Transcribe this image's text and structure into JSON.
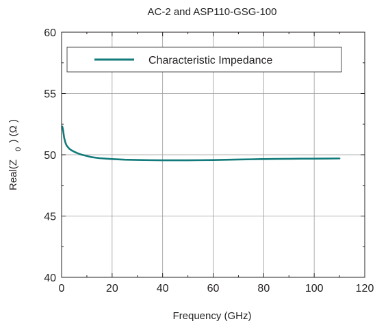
{
  "chart_data": {
    "type": "line",
    "title": "AC-2 and ASP110-GSG-100",
    "xlabel": "Frequency (GHz)",
    "ylabel": {
      "prefix": "Real(Z",
      "subscript": "0",
      "suffix": ") (Ω )"
    },
    "xlim": [
      0,
      120
    ],
    "ylim": [
      40,
      60
    ],
    "xticks": [
      0,
      20,
      40,
      60,
      80,
      100,
      120
    ],
    "yticks": [
      40,
      45,
      50,
      55,
      60
    ],
    "grid": true,
    "legend_position": "top",
    "series": [
      {
        "name": "Characteristic Impedance",
        "color": "#127a7a",
        "x": [
          0.3,
          0.6,
          1,
          1.5,
          2,
          3,
          4,
          5,
          6,
          8,
          10,
          12,
          15,
          20,
          25,
          30,
          35,
          40,
          45,
          50,
          55,
          60,
          65,
          70,
          75,
          80,
          85,
          90,
          95,
          100,
          105,
          110
        ],
        "y": [
          52.3,
          52.0,
          51.4,
          51.0,
          50.75,
          50.5,
          50.35,
          50.25,
          50.15,
          50.0,
          49.9,
          49.8,
          49.72,
          49.65,
          49.6,
          49.58,
          49.56,
          49.55,
          49.55,
          49.55,
          49.56,
          49.57,
          49.59,
          49.61,
          49.63,
          49.65,
          49.66,
          49.67,
          49.68,
          49.68,
          49.69,
          49.7
        ]
      }
    ]
  }
}
